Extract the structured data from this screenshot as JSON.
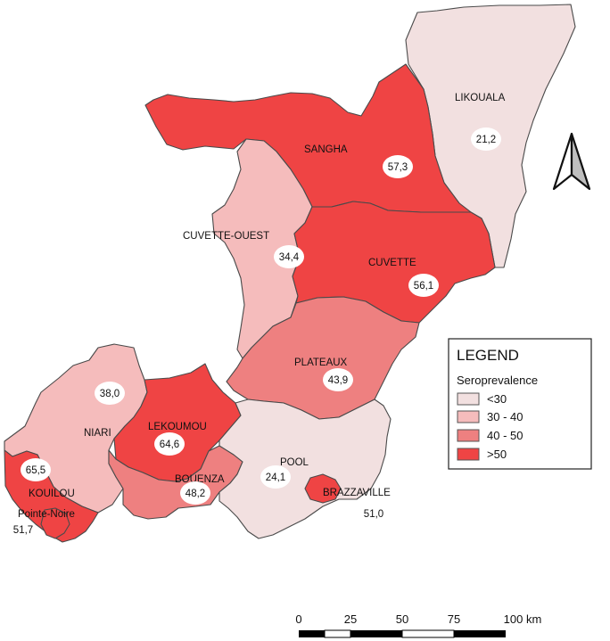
{
  "colors": {
    "lt30": "#f2e0e0",
    "c30_40": "#f5bcbc",
    "c40_50": "#ee8080",
    "gt50": "#ef4444"
  },
  "regions": [
    {
      "id": "likouala",
      "name": "LIKOUALA",
      "value": "21,2",
      "class": "lt30"
    },
    {
      "id": "sangha",
      "name": "SANGHA",
      "value": "57,3",
      "class": "gt50"
    },
    {
      "id": "cuvette-ouest",
      "name": "CUVETTE-OUEST",
      "value": "34,4",
      "class": "c30_40"
    },
    {
      "id": "cuvette",
      "name": "CUVETTE",
      "value": "56,1",
      "class": "gt50"
    },
    {
      "id": "plateaux",
      "name": "PLATEAUX",
      "value": "43,9",
      "class": "c40_50"
    },
    {
      "id": "niari",
      "name": "NIARI",
      "value": "38,0",
      "class": "c30_40"
    },
    {
      "id": "lekoumou",
      "name": "LEKOUMOU",
      "value": "64,6",
      "class": "gt50"
    },
    {
      "id": "bouenza",
      "name": "BOUENZA",
      "value": "48,2",
      "class": "c40_50"
    },
    {
      "id": "pool",
      "name": "POOL",
      "value": "24,1",
      "class": "lt30"
    },
    {
      "id": "brazzaville",
      "name": "BRAZZAVILLE",
      "value": "51,0",
      "class": "gt50"
    },
    {
      "id": "kouilou",
      "name": "KOUILOU",
      "value": "65,5",
      "class": "gt50"
    },
    {
      "id": "pointe-noire",
      "name": "Pointe-Noire",
      "value": "51,7",
      "class": "gt50"
    }
  ],
  "legend": {
    "title": "LEGEND",
    "subtitle": "Seroprevalence",
    "items": [
      {
        "label": "<30",
        "class": "lt30"
      },
      {
        "label": "30 - 40",
        "class": "c30_40"
      },
      {
        "label": "40 - 50",
        "class": "c40_50"
      },
      {
        "label": ">50",
        "class": "gt50"
      }
    ]
  },
  "north_arrow": "north-arrow-icon",
  "scale_bar": {
    "ticks": [
      "0",
      "25",
      "50",
      "75",
      "100 km"
    ]
  }
}
